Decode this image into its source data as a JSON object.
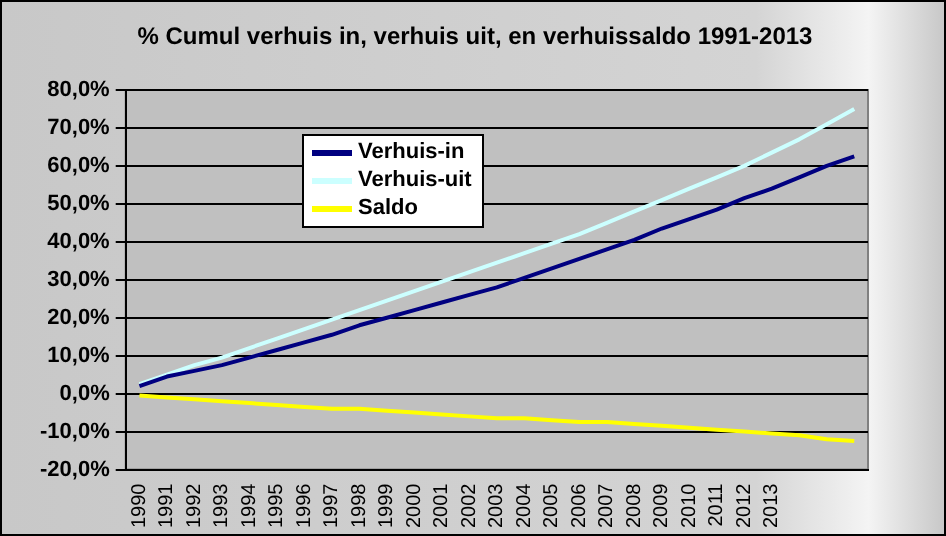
{
  "chart_data": {
    "type": "line",
    "title": "% Cumul verhuis in, verhuis uit, en verhuissaldo 1991-2013",
    "categories": [
      "1990",
      "1991",
      "1992",
      "1993",
      "1994",
      "1995",
      "1996",
      "1997",
      "1998",
      "1999",
      "2000",
      "2001",
      "2002",
      "2003",
      "2004",
      "2005",
      "2006",
      "2007",
      "2008",
      "2009",
      "2010",
      "2011",
      "2012",
      "2013",
      null,
      null,
      null
    ],
    "series": [
      {
        "name": "Verhuis-in",
        "color": "#000080",
        "values": [
          2,
          4.5,
          6,
          7.5,
          9.5,
          11.5,
          13.5,
          15.5,
          18,
          20,
          22,
          24,
          26,
          28,
          30.5,
          33,
          35.5,
          38,
          40.5,
          43.5,
          46,
          48.5,
          51.5,
          54,
          57,
          60,
          62.5
        ]
      },
      {
        "name": "Verhuis-uit",
        "color": "#ccffff",
        "values": [
          2.5,
          5,
          7.5,
          9.5,
          12,
          14.5,
          17,
          19.5,
          22,
          24.5,
          27,
          29.5,
          32,
          34.5,
          37,
          39.5,
          42,
          45,
          48,
          51,
          54,
          57,
          60,
          63.5,
          67,
          71,
          75
        ]
      },
      {
        "name": "Saldo",
        "color": "#ffff00",
        "values": [
          -0.5,
          -1,
          -1.5,
          -2,
          -2.5,
          -3,
          -3.5,
          -4,
          -4,
          -4.5,
          -5,
          -5.5,
          -6,
          -6.5,
          -6.5,
          -7,
          -7.5,
          -7.5,
          -8,
          -8.5,
          -9,
          -9.5,
          -10,
          -10.5,
          -11,
          -12,
          -12.5
        ]
      }
    ],
    "ylim": [
      -20,
      80
    ],
    "yticks": [
      {
        "value": -20,
        "label": "-20,0%"
      },
      {
        "value": -10,
        "label": "-10,0%"
      },
      {
        "value": 0,
        "label": "0,0%"
      },
      {
        "value": 10,
        "label": "10,0%"
      },
      {
        "value": 20,
        "label": "20,0%"
      },
      {
        "value": 30,
        "label": "30,0%"
      },
      {
        "value": 40,
        "label": "40,0%"
      },
      {
        "value": 50,
        "label": "50,0%"
      },
      {
        "value": 60,
        "label": "60,0%"
      },
      {
        "value": 70,
        "label": "70,0%"
      },
      {
        "value": 80,
        "label": "80,0%"
      }
    ],
    "grid": "y",
    "legend": "top left",
    "marker": "none",
    "line_style": "solid"
  }
}
